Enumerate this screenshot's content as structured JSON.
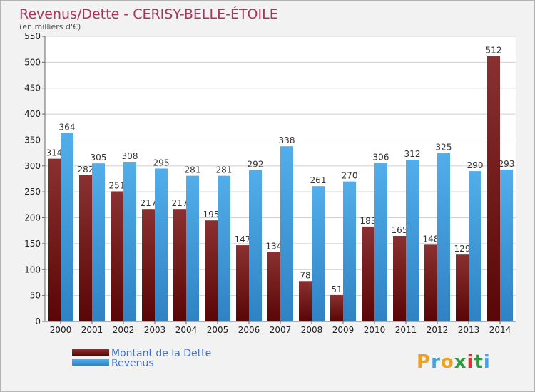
{
  "chart_data": {
    "type": "bar",
    "title": "Revenus/Dette - CERISY-BELLE-ÉTOILE",
    "subtitle": "(en milliers d'€)",
    "categories": [
      "2000",
      "2001",
      "2002",
      "2003",
      "2004",
      "2005",
      "2006",
      "2007",
      "2008",
      "2009",
      "2010",
      "2011",
      "2012",
      "2013",
      "2014"
    ],
    "series": [
      {
        "name": "Montant de la Dette",
        "color": "#7a1c1c",
        "values": [
          314,
          282,
          251,
          217,
          217,
          195,
          147,
          134,
          78,
          51,
          183,
          165,
          148,
          129,
          512
        ]
      },
      {
        "name": "Revenus",
        "color": "#4aa0e0",
        "values": [
          364,
          305,
          308,
          295,
          281,
          281,
          292,
          338,
          261,
          270,
          306,
          312,
          325,
          290,
          293
        ]
      }
    ],
    "y_ticks": [
      "0",
      "50",
      "100",
      "150",
      "200",
      "250",
      "300",
      "350",
      "400",
      "450",
      "500",
      "550"
    ],
    "ylim": [
      0,
      550
    ],
    "grid": true,
    "legend_position": "bottom-left"
  },
  "brand": {
    "letters": [
      "P",
      "r",
      "o",
      "x",
      "i",
      "t",
      "i"
    ],
    "colors": [
      "#f0a020",
      "#4aa0e0",
      "#f0a020",
      "#2a9a3a",
      "#e03030",
      "#2a9a3a",
      "#4aa0e0"
    ]
  }
}
